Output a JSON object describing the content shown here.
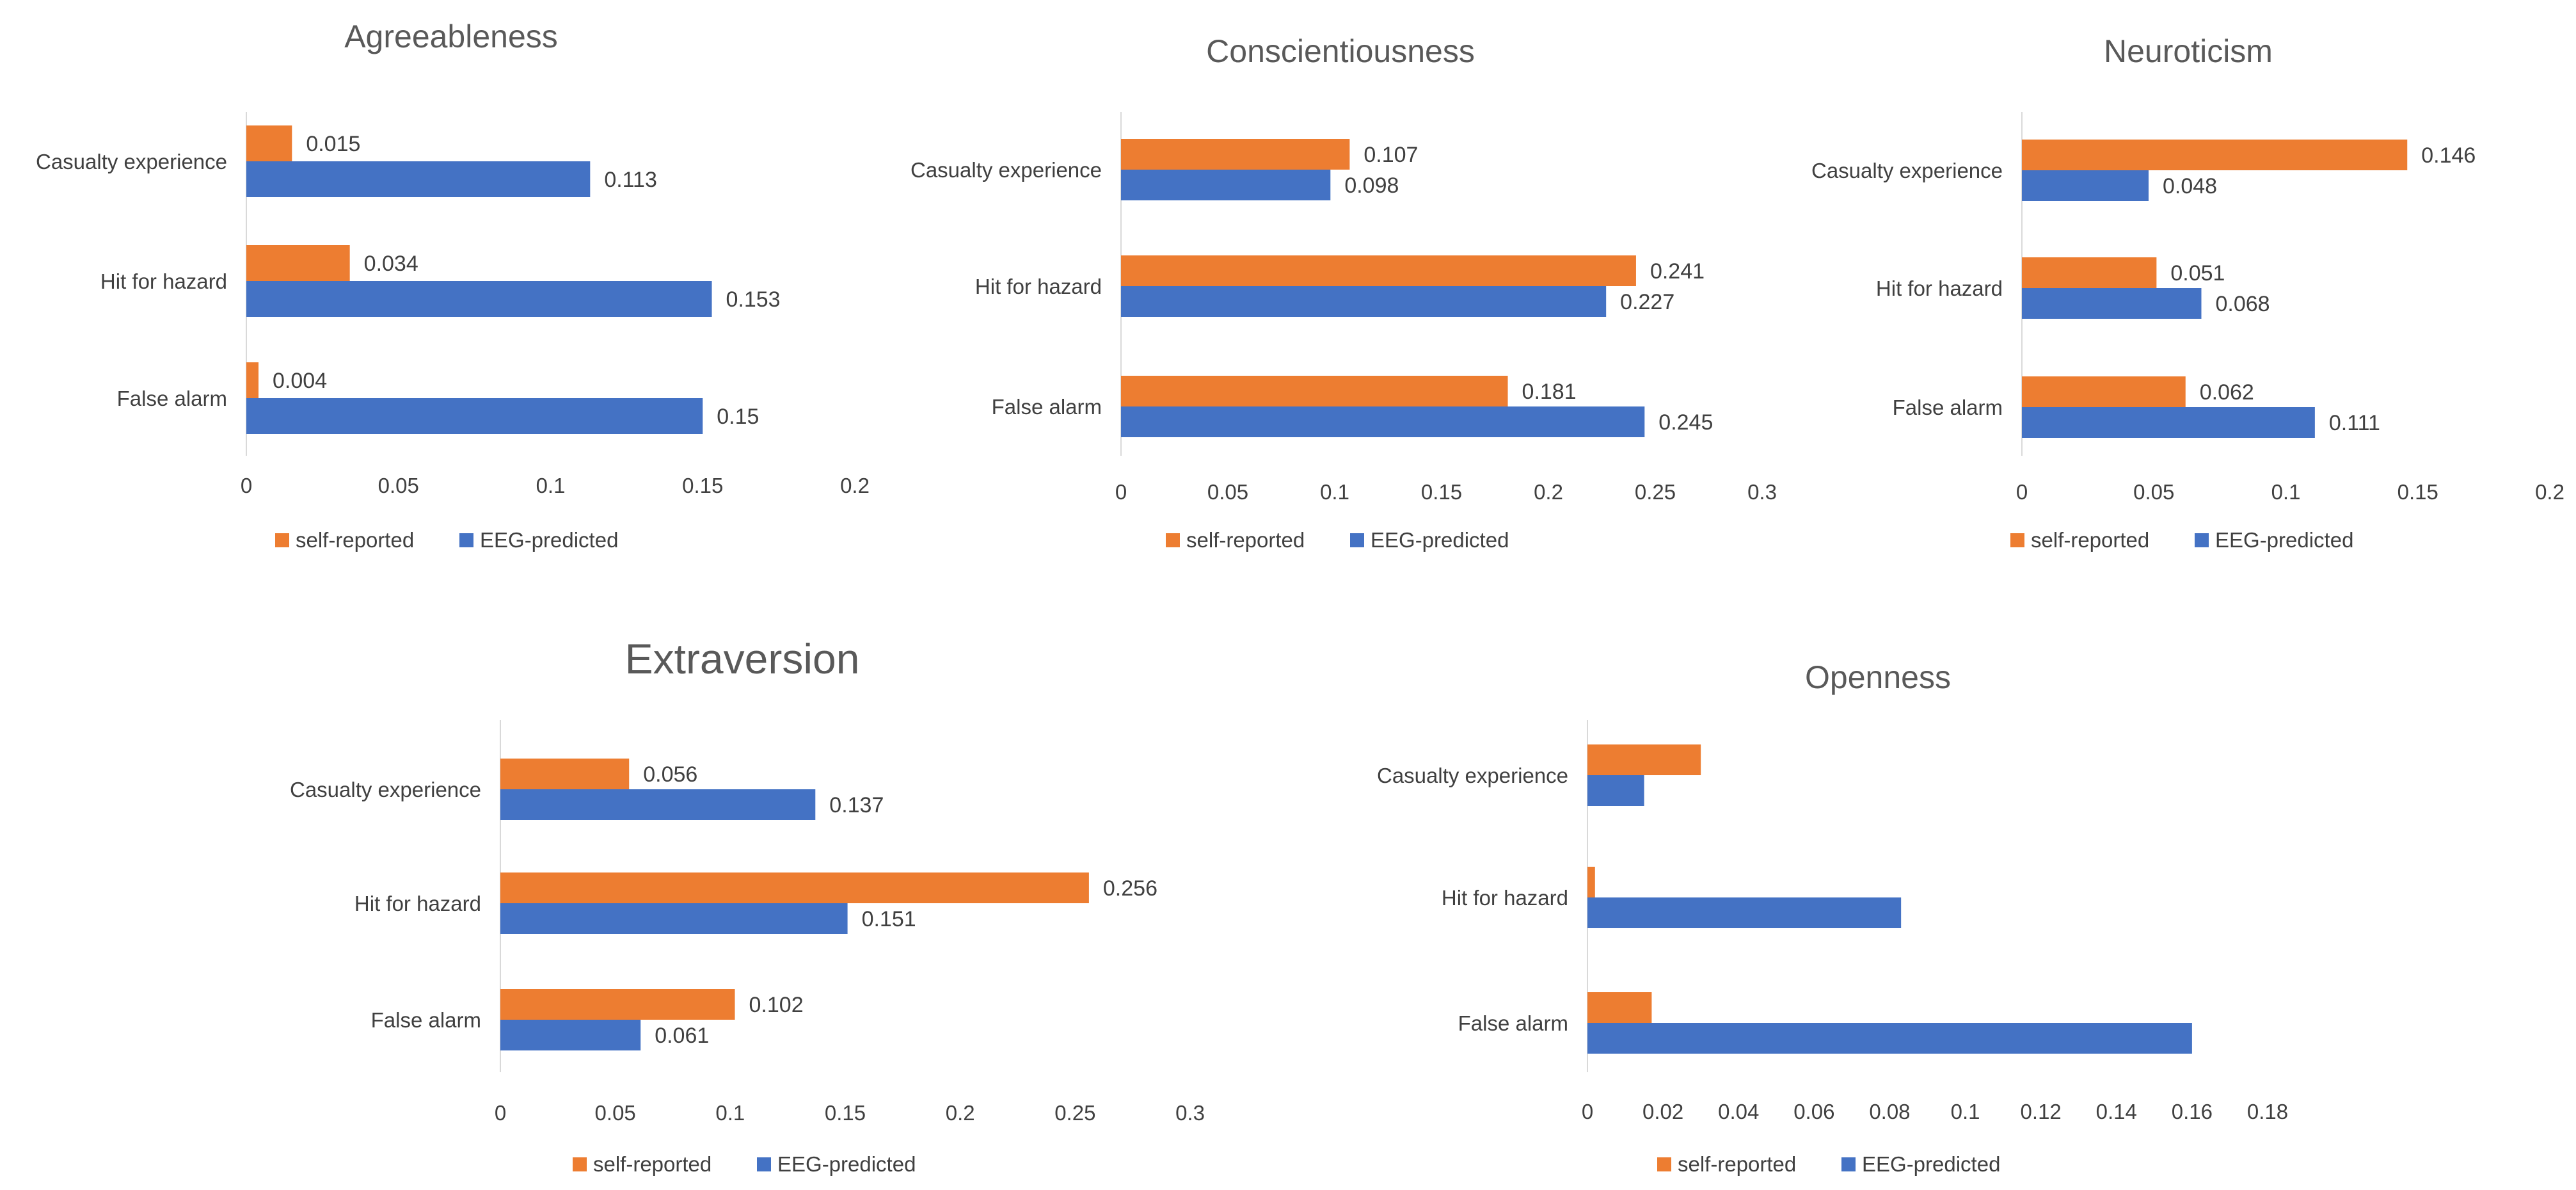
{
  "colors": {
    "self_reported": "#ED7D31",
    "eeg_predicted": "#4472C4"
  },
  "chart_data": [
    {
      "type": "bar",
      "orientation": "horizontal",
      "title": "Agreeableness",
      "categories": [
        "Casualty experience",
        "Hit for hazard",
        "False alarm"
      ],
      "series": [
        {
          "name": "self-reported",
          "values": [
            0.015,
            0.034,
            0.004
          ],
          "labels": [
            "0.015",
            "0.034",
            "0.004"
          ]
        },
        {
          "name": "EEG-predicted",
          "values": [
            0.113,
            0.153,
            0.15
          ],
          "labels": [
            "0.113",
            "0.153",
            "0.15"
          ]
        }
      ],
      "xlim": [
        0,
        0.2
      ],
      "ticks": [
        0,
        0.05,
        0.1,
        0.15,
        0.2
      ],
      "tick_labels": [
        "0",
        "0.05",
        "0.1",
        "0.15",
        "0.2"
      ],
      "legend_position": "bottom",
      "grid": false
    },
    {
      "type": "bar",
      "orientation": "horizontal",
      "title": "Conscientiousness",
      "categories": [
        "Casualty experience",
        "Hit for hazard",
        "False alarm"
      ],
      "series": [
        {
          "name": "self-reported",
          "values": [
            0.107,
            0.241,
            0.181
          ],
          "labels": [
            "0.107",
            "0.241",
            "0.181"
          ]
        },
        {
          "name": "EEG-predicted",
          "values": [
            0.098,
            0.227,
            0.245
          ],
          "labels": [
            "0.098",
            "0.227",
            "0.245"
          ]
        }
      ],
      "xlim": [
        0,
        0.3
      ],
      "ticks": [
        0,
        0.05,
        0.1,
        0.15,
        0.2,
        0.25,
        0.3
      ],
      "tick_labels": [
        "0",
        "0.05",
        "0.1",
        "0.15",
        "0.2",
        "0.25",
        "0.3"
      ],
      "legend_position": "bottom",
      "grid": false
    },
    {
      "type": "bar",
      "orientation": "horizontal",
      "title": "Neuroticism",
      "categories": [
        "Casualty experience",
        "Hit for hazard",
        "False alarm"
      ],
      "series": [
        {
          "name": "self-reported",
          "values": [
            0.146,
            0.051,
            0.062
          ],
          "labels": [
            "0.146",
            "0.051",
            "0.062"
          ]
        },
        {
          "name": "EEG-predicted",
          "values": [
            0.048,
            0.068,
            0.111
          ],
          "labels": [
            "0.048",
            "0.068",
            "0.111"
          ]
        }
      ],
      "xlim": [
        0,
        0.2
      ],
      "ticks": [
        0,
        0.05,
        0.1,
        0.15,
        0.2
      ],
      "tick_labels": [
        "0",
        "0.05",
        "0.1",
        "0.15",
        "0.2"
      ],
      "legend_position": "bottom",
      "grid": false
    },
    {
      "type": "bar",
      "orientation": "horizontal",
      "title": "Extraversion",
      "categories": [
        "Casualty experience",
        "Hit for hazard",
        "False alarm"
      ],
      "series": [
        {
          "name": "self-reported",
          "values": [
            0.056,
            0.256,
            0.102
          ],
          "labels": [
            "0.056",
            "0.256",
            "0.102"
          ]
        },
        {
          "name": "EEG-predicted",
          "values": [
            0.137,
            0.151,
            0.061
          ],
          "labels": [
            "0.137",
            "0.151",
            "0.061"
          ]
        }
      ],
      "xlim": [
        0,
        0.3
      ],
      "ticks": [
        0,
        0.05,
        0.1,
        0.15,
        0.2,
        0.25,
        0.3
      ],
      "tick_labels": [
        "0",
        "0.05",
        "0.1",
        "0.15",
        "0.2",
        "0.25",
        "0.3"
      ],
      "legend_position": "bottom",
      "grid": false
    },
    {
      "type": "bar",
      "orientation": "horizontal",
      "title": "Openness",
      "categories": [
        "Casualty experience",
        "Hit for hazard",
        "False alarm"
      ],
      "series": [
        {
          "name": "self-reported",
          "values": [
            0.03,
            0.002,
            0.017
          ],
          "labels": [
            "",
            "",
            ""
          ]
        },
        {
          "name": "EEG-predicted",
          "values": [
            0.015,
            0.083,
            0.16
          ],
          "labels": [
            "",
            "",
            ""
          ]
        }
      ],
      "xlim": [
        0,
        0.18
      ],
      "ticks": [
        0,
        0.02,
        0.04,
        0.06,
        0.08,
        0.1,
        0.12,
        0.14,
        0.16,
        0.18
      ],
      "tick_labels": [
        "0",
        "0.02",
        "0.04",
        "0.06",
        "0.08",
        "0.1",
        "0.12",
        "0.14",
        "0.16",
        "0.18"
      ],
      "legend_position": "bottom",
      "grid": false
    }
  ]
}
